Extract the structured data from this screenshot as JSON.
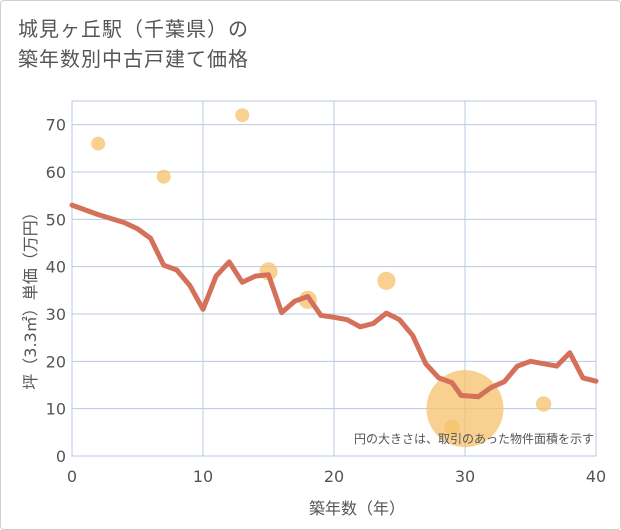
{
  "title_line1": "城見ヶ丘駅（千葉県）の",
  "title_line2": "築年数別中古戸建て価格",
  "colors": {
    "line": "#d5705b",
    "bubble": "#f5c26b",
    "grid": "#b8c8e0",
    "text": "#555555"
  },
  "chart_data": {
    "type": "scatter",
    "xlabel": "築年数（年）",
    "ylabel": "坪（3.3㎡）単価（万円）",
    "xlim": [
      0,
      40
    ],
    "ylim": [
      0,
      75
    ],
    "xticks": [
      0,
      10,
      20,
      30,
      40
    ],
    "yticks": [
      0,
      10,
      20,
      30,
      40,
      50,
      60,
      70
    ],
    "grid": true,
    "annotation": "円の大きさは、取引のあった物件面積を示す",
    "series": [
      {
        "kind": "line",
        "points": [
          [
            0,
            53
          ],
          [
            2,
            51
          ],
          [
            4,
            49.3
          ],
          [
            5,
            48
          ],
          [
            6,
            46
          ],
          [
            7,
            40.3
          ],
          [
            8,
            39.3
          ],
          [
            9,
            36
          ],
          [
            10,
            31
          ],
          [
            11,
            38
          ],
          [
            12,
            41
          ],
          [
            13,
            36.7
          ],
          [
            14,
            38
          ],
          [
            15,
            38.3
          ],
          [
            16,
            30.3
          ],
          [
            17,
            32.7
          ],
          [
            18,
            33.7
          ],
          [
            19,
            29.7
          ],
          [
            20,
            29.3
          ],
          [
            21,
            28.8
          ],
          [
            22,
            27.3
          ],
          [
            23,
            28
          ],
          [
            24,
            30.2
          ],
          [
            25,
            28.8
          ],
          [
            26,
            25.5
          ],
          [
            27,
            19.5
          ],
          [
            28,
            16.5
          ],
          [
            29,
            15.5
          ],
          [
            29.7,
            12.8
          ],
          [
            31,
            12.5
          ],
          [
            32,
            14.5
          ],
          [
            33,
            15.7
          ],
          [
            34,
            19
          ],
          [
            35,
            20
          ],
          [
            36,
            19.5
          ],
          [
            37,
            19
          ],
          [
            38,
            21.8
          ],
          [
            39,
            16.5
          ],
          [
            40,
            15.8
          ]
        ]
      },
      {
        "kind": "bubble",
        "points": [
          {
            "x": 2,
            "y": 66,
            "size": 1
          },
          {
            "x": 7,
            "y": 59,
            "size": 1
          },
          {
            "x": 13,
            "y": 72,
            "size": 1
          },
          {
            "x": 15,
            "y": 39,
            "size": 1.3
          },
          {
            "x": 18,
            "y": 33,
            "size": 1.3
          },
          {
            "x": 24,
            "y": 37,
            "size": 1.3
          },
          {
            "x": 30,
            "y": 10,
            "size": 5.5
          },
          {
            "x": 29,
            "y": 6,
            "size": 1.1
          },
          {
            "x": 36,
            "y": 11,
            "size": 1.1
          }
        ]
      }
    ]
  }
}
